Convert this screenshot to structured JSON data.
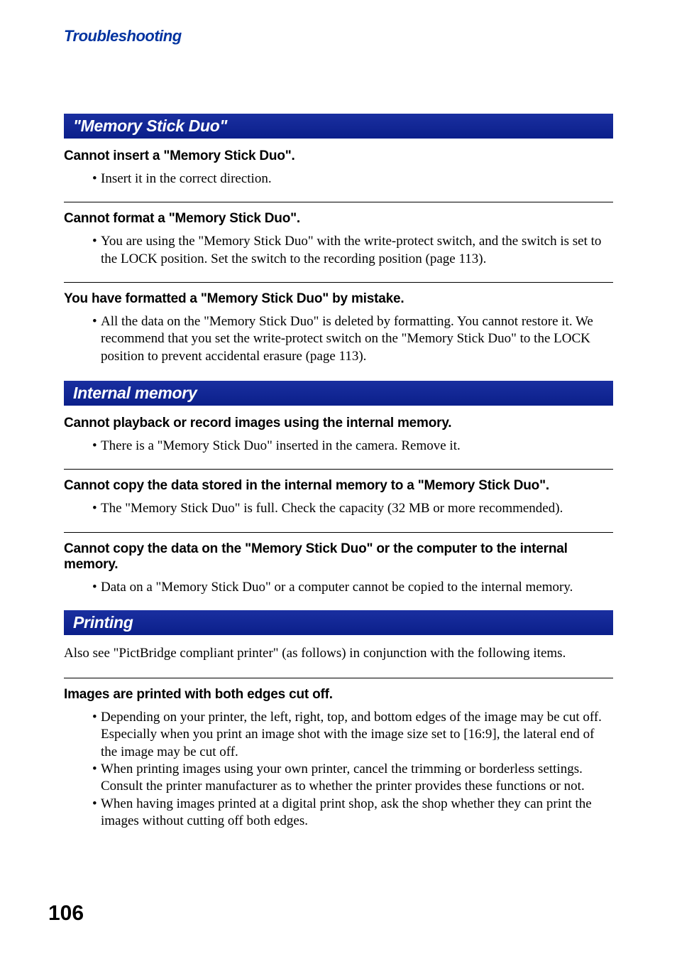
{
  "header": "Troubleshooting",
  "pageNumber": "106",
  "sections": [
    {
      "heading": "\"Memory Stick Duo\"",
      "items": [
        {
          "title": "Cannot insert a \"Memory Stick Duo\".",
          "bullets": [
            "Insert it in the correct direction."
          ]
        },
        {
          "title": "Cannot format a \"Memory Stick Duo\".",
          "bullets": [
            "You are using the \"Memory Stick Duo\" with the write-protect switch, and the switch is set to the LOCK position. Set the switch to the recording position (page 113)."
          ]
        },
        {
          "title": "You have formatted a \"Memory Stick Duo\" by mistake.",
          "bullets": [
            "All the data on the \"Memory Stick Duo\" is deleted by formatting. You cannot restore it. We recommend that you set the write-protect switch on the \"Memory Stick Duo\" to the LOCK position to prevent accidental erasure (page 113)."
          ]
        }
      ]
    },
    {
      "heading": "Internal memory",
      "items": [
        {
          "title": "Cannot playback or record images using the internal memory.",
          "bullets": [
            "There is a \"Memory Stick Duo\" inserted in the camera. Remove it."
          ]
        },
        {
          "title": "Cannot copy the data stored in the internal memory to a \"Memory Stick Duo\".",
          "bullets": [
            "The \"Memory Stick Duo\" is full. Check the capacity (32 MB or more recommended)."
          ]
        },
        {
          "title": "Cannot copy the data on the \"Memory Stick Duo\" or the computer to the internal memory.",
          "bullets": [
            "Data on a \"Memory Stick Duo\" or a computer cannot be copied to the internal memory."
          ]
        }
      ]
    },
    {
      "heading": "Printing",
      "intro": "Also see \"PictBridge compliant printer\" (as follows) in conjunction with the following items.",
      "items": [
        {
          "title": "Images are printed with both edges cut off.",
          "bullets": [
            "Depending on your printer, the left, right, top, and bottom edges of the image may be cut off. Especially when you print an image shot with the image size set to [16:9], the lateral end of the image may be cut off.",
            "When printing images using your own printer, cancel the trimming or borderless settings. Consult the printer manufacturer as to whether the printer provides these functions or not.",
            "When having images printed at a digital print shop, ask the shop whether they can print the images without cutting off both edges."
          ]
        }
      ]
    }
  ]
}
